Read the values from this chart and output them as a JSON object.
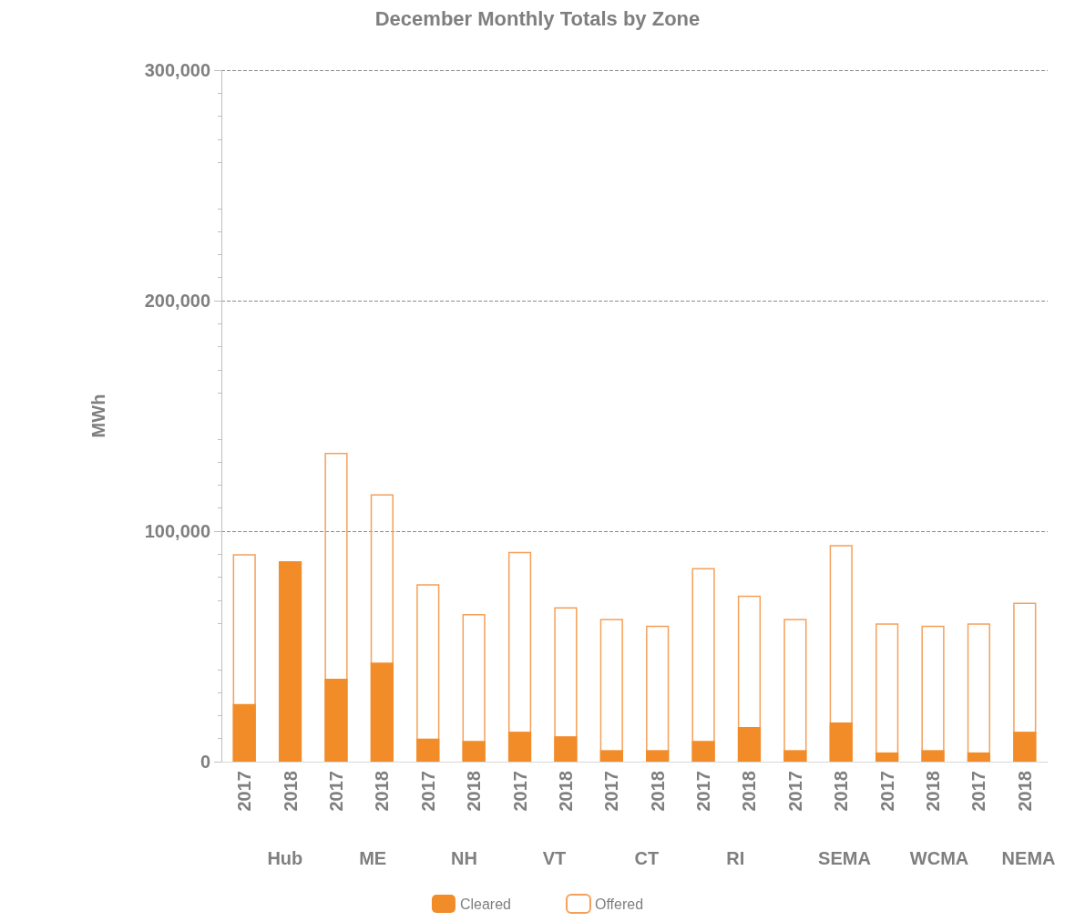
{
  "chart_data": {
    "type": "bar",
    "title": "December Monthly Totals by Zone",
    "ylabel": "MWh",
    "categories": [
      "2017",
      "2018",
      "2017",
      "2018",
      "2017",
      "2018",
      "2017",
      "2018",
      "2017",
      "2018",
      "2017",
      "2018",
      "2017",
      "2018",
      "2017",
      "2018",
      "2017",
      "2018"
    ],
    "annotations": [
      "Hub",
      "ME",
      "NH",
      "VT",
      "CT",
      "RI",
      "SEMA",
      "WCMA",
      "NEMA"
    ],
    "series": [
      {
        "name": "Cleared",
        "color": "#f28c28",
        "values": [
          25000,
          87000,
          36000,
          43000,
          10000,
          9000,
          13000,
          11000,
          5000,
          5000,
          9000,
          15000,
          5000,
          17000,
          4000,
          5000,
          4000,
          13000
        ]
      },
      {
        "name": "Offered",
        "color": "#f5a05a",
        "values": [
          90000,
          null,
          134000,
          116000,
          77000,
          64000,
          91000,
          67000,
          62000,
          59000,
          84000,
          72000,
          62000,
          94000,
          60000,
          59000,
          60000,
          69000
        ]
      }
    ],
    "ylim": [
      0,
      300000
    ],
    "yticks": [
      0,
      {
        "value": 100000,
        "label": "100,000"
      },
      {
        "value": 200000,
        "label": "200,000"
      },
      {
        "value": 300000,
        "label": "300,000"
      }
    ],
    "grid": "y",
    "legend": "bottom"
  }
}
